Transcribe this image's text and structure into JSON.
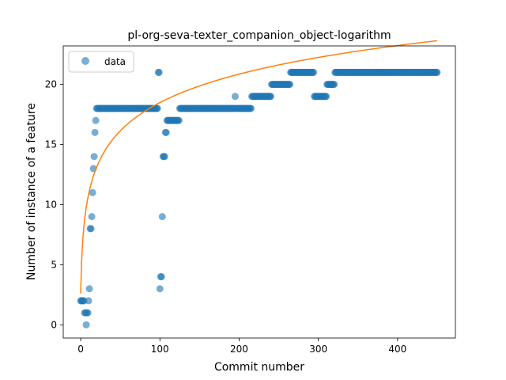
{
  "chart_data": {
    "type": "scatter",
    "title": "pl-org-seva-texter_companion_object-logarithm",
    "xlabel": "Commit number",
    "ylabel": "Number of instance of a feature",
    "xlim": [
      -22,
      473
    ],
    "ylim": [
      -1.1,
      23.2
    ],
    "xticks": [
      0,
      100,
      200,
      300,
      400
    ],
    "yticks": [
      0,
      5,
      10,
      15,
      20
    ],
    "grid": false,
    "legend": {
      "placement": "top-left",
      "entries": [
        "data"
      ]
    },
    "colors": {
      "data": "#1f77b4",
      "fit": "#ff7f0e"
    },
    "series": [
      {
        "name": "data",
        "kind": "scatter",
        "segments": [
          [
            0,
            4,
            2
          ],
          [
            5,
            6,
            1
          ],
          [
            7,
            7,
            0
          ],
          [
            8,
            9,
            1
          ],
          [
            10,
            10,
            2
          ],
          [
            11,
            11,
            3
          ],
          [
            12,
            13,
            8
          ],
          [
            14,
            14,
            9
          ],
          [
            15,
            15,
            11
          ],
          [
            16,
            16,
            13
          ],
          [
            17,
            17,
            14
          ],
          [
            18,
            18,
            16
          ],
          [
            19,
            19,
            17
          ],
          [
            20,
            97,
            18
          ],
          [
            98,
            99,
            21
          ],
          [
            100,
            100,
            3
          ],
          [
            101,
            102,
            4
          ],
          [
            103,
            103,
            9
          ],
          [
            104,
            106,
            14
          ],
          [
            107,
            108,
            16
          ],
          [
            109,
            124,
            17
          ],
          [
            125,
            194,
            18
          ],
          [
            195,
            195,
            19
          ],
          [
            196,
            215,
            18
          ],
          [
            216,
            240,
            19
          ],
          [
            241,
            264,
            20
          ],
          [
            265,
            294,
            21
          ],
          [
            295,
            310,
            19
          ],
          [
            311,
            320,
            20
          ],
          [
            321,
            450,
            21
          ]
        ]
      },
      {
        "name": "",
        "kind": "line",
        "model": "logarithmic",
        "a": 2.61,
        "b": 3.44,
        "x_range": [
          0,
          450
        ]
      }
    ]
  }
}
